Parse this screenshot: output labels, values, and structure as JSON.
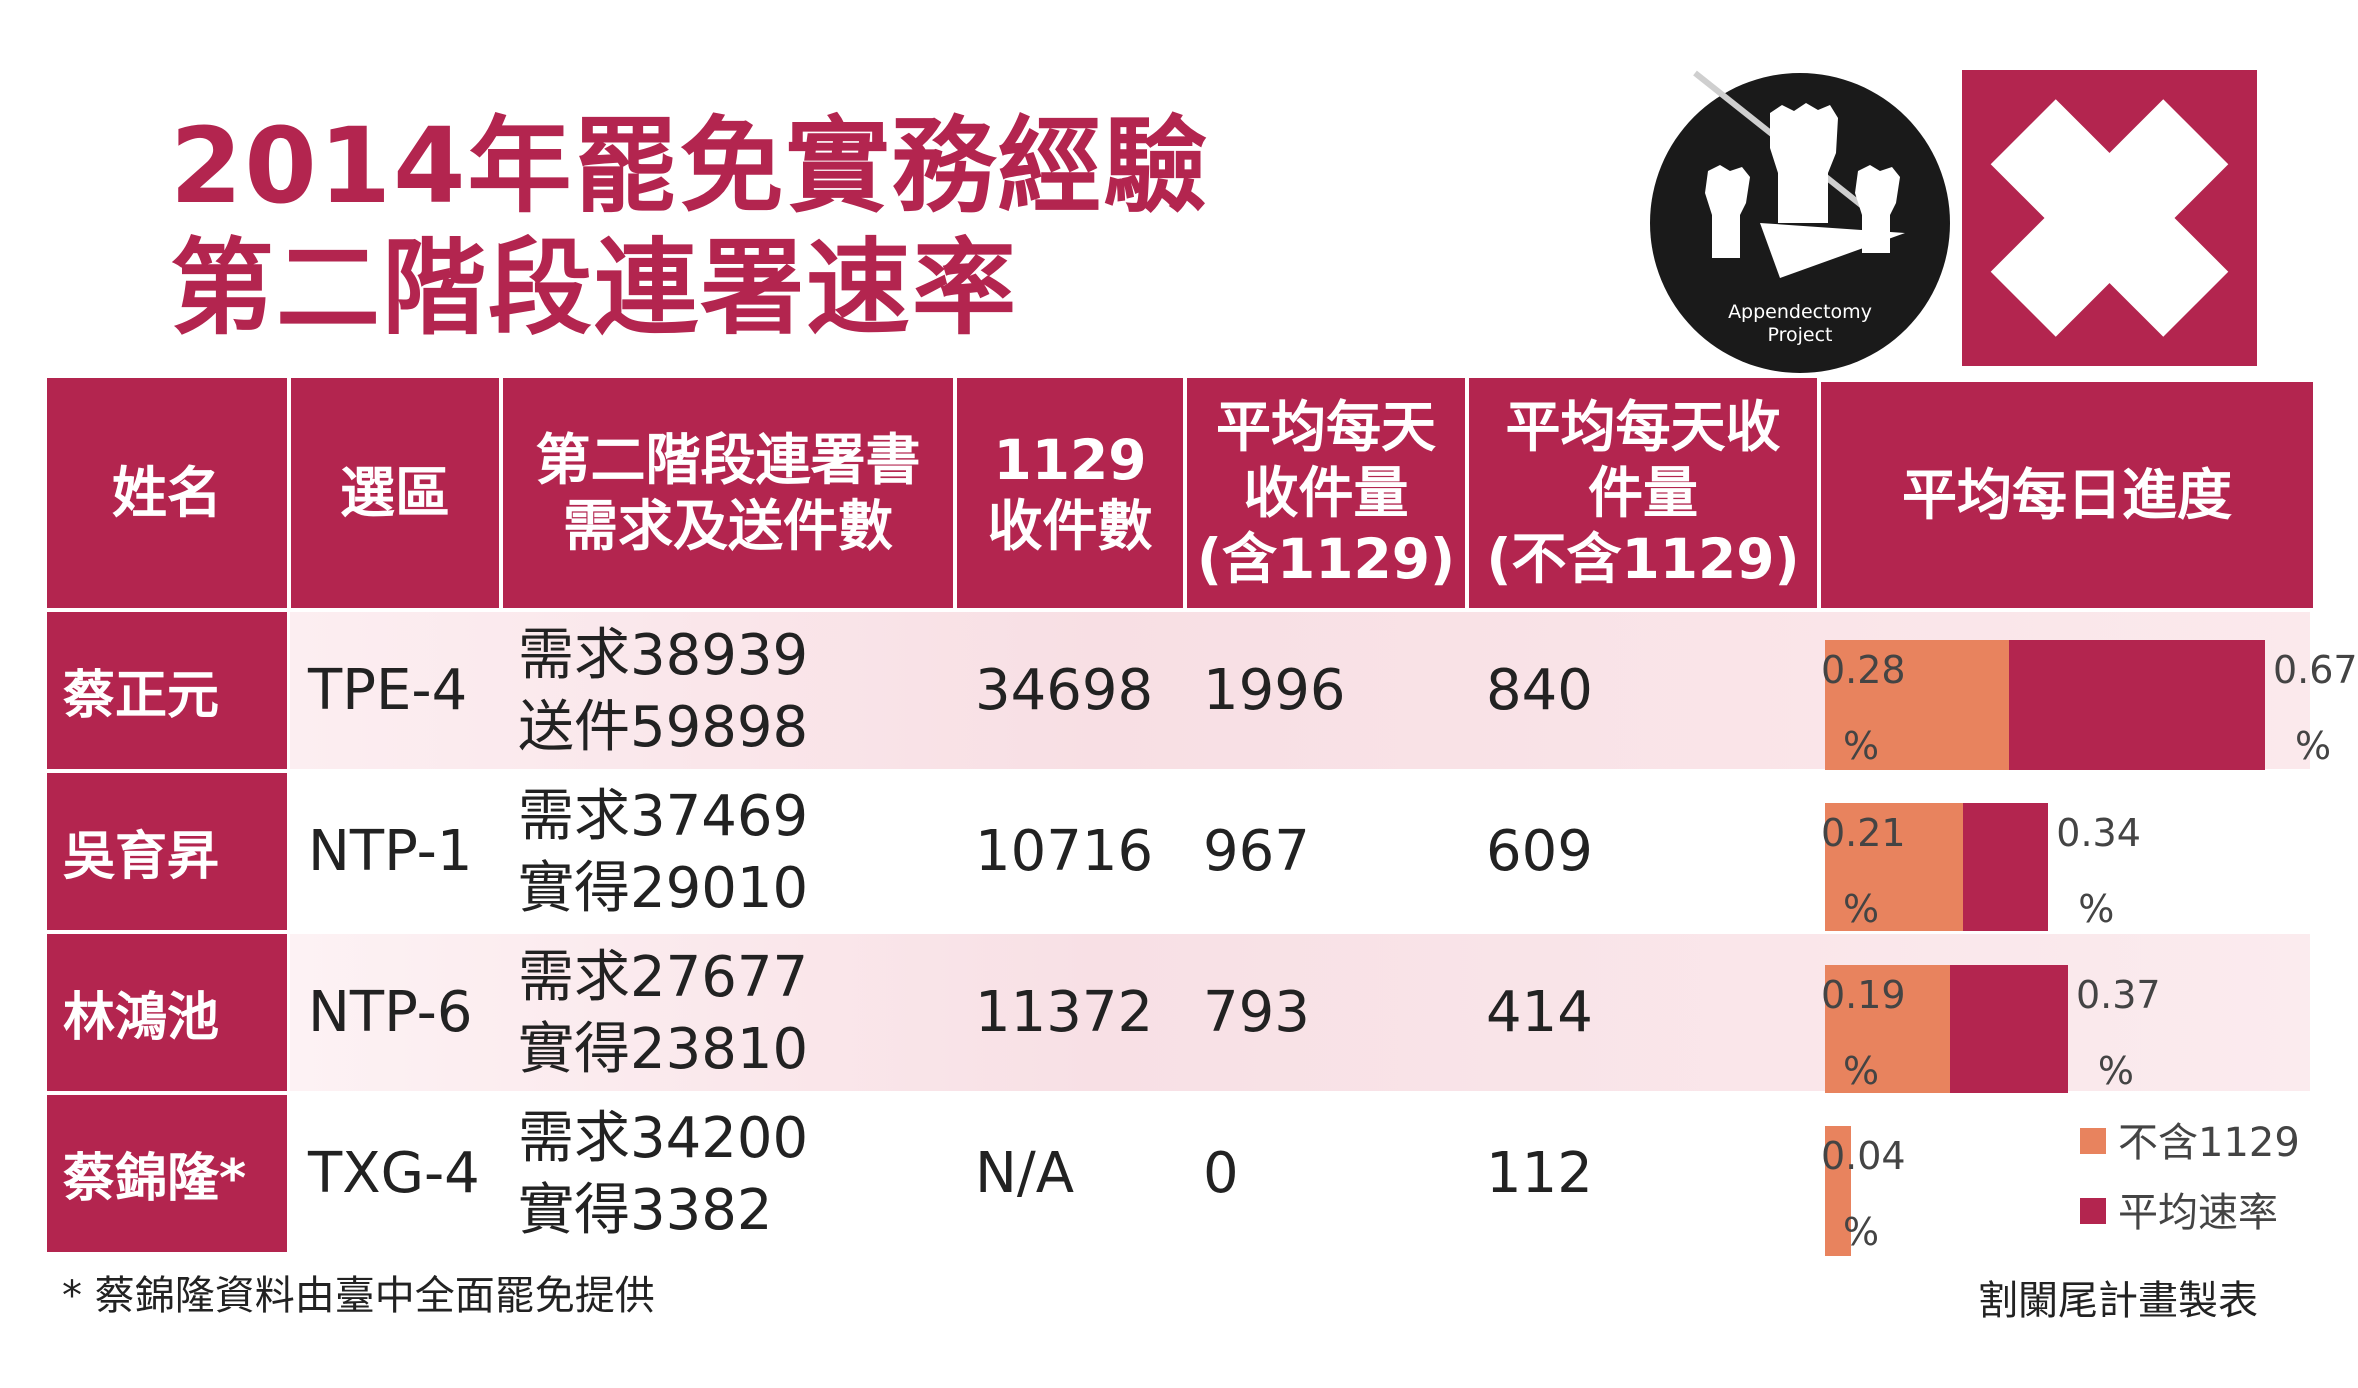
{
  "title": {
    "line1": "2014年罷免實務經驗",
    "line2": "第二階段連署速率"
  },
  "logo": {
    "text_line1": "Appendectomy",
    "text_line2": "Project",
    "icon": "raised-fists-icon",
    "x_icon": "x-icon"
  },
  "colors": {
    "accent": "#b3254f",
    "light_bar": "#e8835e",
    "row_tint": "#fbe9ec"
  },
  "table": {
    "headers": {
      "name": "姓名",
      "district": "選區",
      "stage2_line1": "第二階段連署書",
      "stage2_line2": "需求及送件數",
      "c1129_line1": "1129",
      "c1129_line2": "收件數",
      "avg_incl_line1": "平均每天",
      "avg_incl_line2": "收件量",
      "avg_incl_line3": "(含1129)",
      "avg_excl_line1": "平均每天收",
      "avg_excl_line2": "件量",
      "avg_excl_line3": "(不含1129)",
      "progress": "平均每日進度"
    },
    "rows": [
      {
        "name": "蔡正元",
        "district": "TPE-4",
        "demand": "需求38939",
        "submitted": "送件59898",
        "received_1129": "34698",
        "avg_incl": "1996",
        "avg_excl": "840",
        "excl_value": "0.28",
        "excl_unit": "%",
        "avg_value": "0.67",
        "avg_unit": "%",
        "excl_pct": 0.28,
        "avg_pct": 0.67
      },
      {
        "name": "吳育昇",
        "district": "NTP-1",
        "demand": "需求37469",
        "submitted": "實得29010",
        "received_1129": "10716",
        "avg_incl": "967",
        "avg_excl": "609",
        "excl_value": "0.21",
        "excl_unit": "%",
        "avg_value": "0.34",
        "avg_unit": "%",
        "excl_pct": 0.21,
        "avg_pct": 0.34
      },
      {
        "name": "林鴻池",
        "district": "NTP-6",
        "demand": "需求27677",
        "submitted": "實得23810",
        "received_1129": "11372",
        "avg_incl": "793",
        "avg_excl": "414",
        "excl_value": "0.19",
        "excl_unit": "%",
        "avg_value": "0.37",
        "avg_unit": "%",
        "excl_pct": 0.19,
        "avg_pct": 0.37
      },
      {
        "name": "蔡錦隆*",
        "district": "TXG-4",
        "demand": "需求34200",
        "submitted": "實得3382",
        "received_1129": "N/A",
        "avg_incl": "0",
        "avg_excl": "112",
        "excl_value": "0.04",
        "excl_unit": "%",
        "excl_pct": 0.04
      }
    ]
  },
  "legend": {
    "excl": "不含1129",
    "avg": "平均速率"
  },
  "footnote": "* 蔡錦隆資料由臺中全面罷免提供",
  "credit": "割闌尾計畫製表"
}
